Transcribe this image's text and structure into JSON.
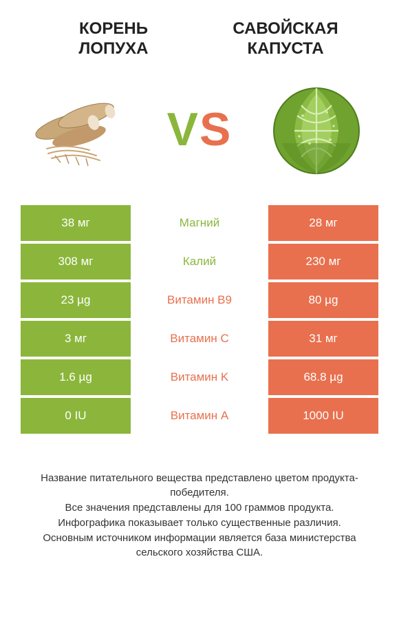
{
  "colors": {
    "left": "#8bb63b",
    "right": "#e8704e",
    "text": "#333333",
    "white": "#ffffff"
  },
  "header": {
    "left_title": "КОРЕНЬ\nЛОПУХА",
    "right_title": "САВОЙСКАЯ\nКАПУСТА"
  },
  "vs": {
    "v": "V",
    "s": "S"
  },
  "rows": [
    {
      "left": "38 мг",
      "label": "Магний",
      "right": "28 мг",
      "winner": "left"
    },
    {
      "left": "308 мг",
      "label": "Калий",
      "right": "230 мг",
      "winner": "left"
    },
    {
      "left": "23 µg",
      "label": "Витамин B9",
      "right": "80 µg",
      "winner": "right"
    },
    {
      "left": "3 мг",
      "label": "Витамин C",
      "right": "31 мг",
      "winner": "right"
    },
    {
      "left": "1.6 µg",
      "label": "Витамин K",
      "right": "68.8 µg",
      "winner": "right"
    },
    {
      "left": "0 IU",
      "label": "Витамин A",
      "right": "1000 IU",
      "winner": "right"
    }
  ],
  "footer": {
    "line1": "Название питательного вещества представлено цветом продукта-победителя.",
    "line2": "Все значения представлены для 100 граммов продукта.",
    "line3": "Инфографика показывает только существенные различия.",
    "line4": "Основным источником информации является база министерства сельского хозяйства США."
  }
}
